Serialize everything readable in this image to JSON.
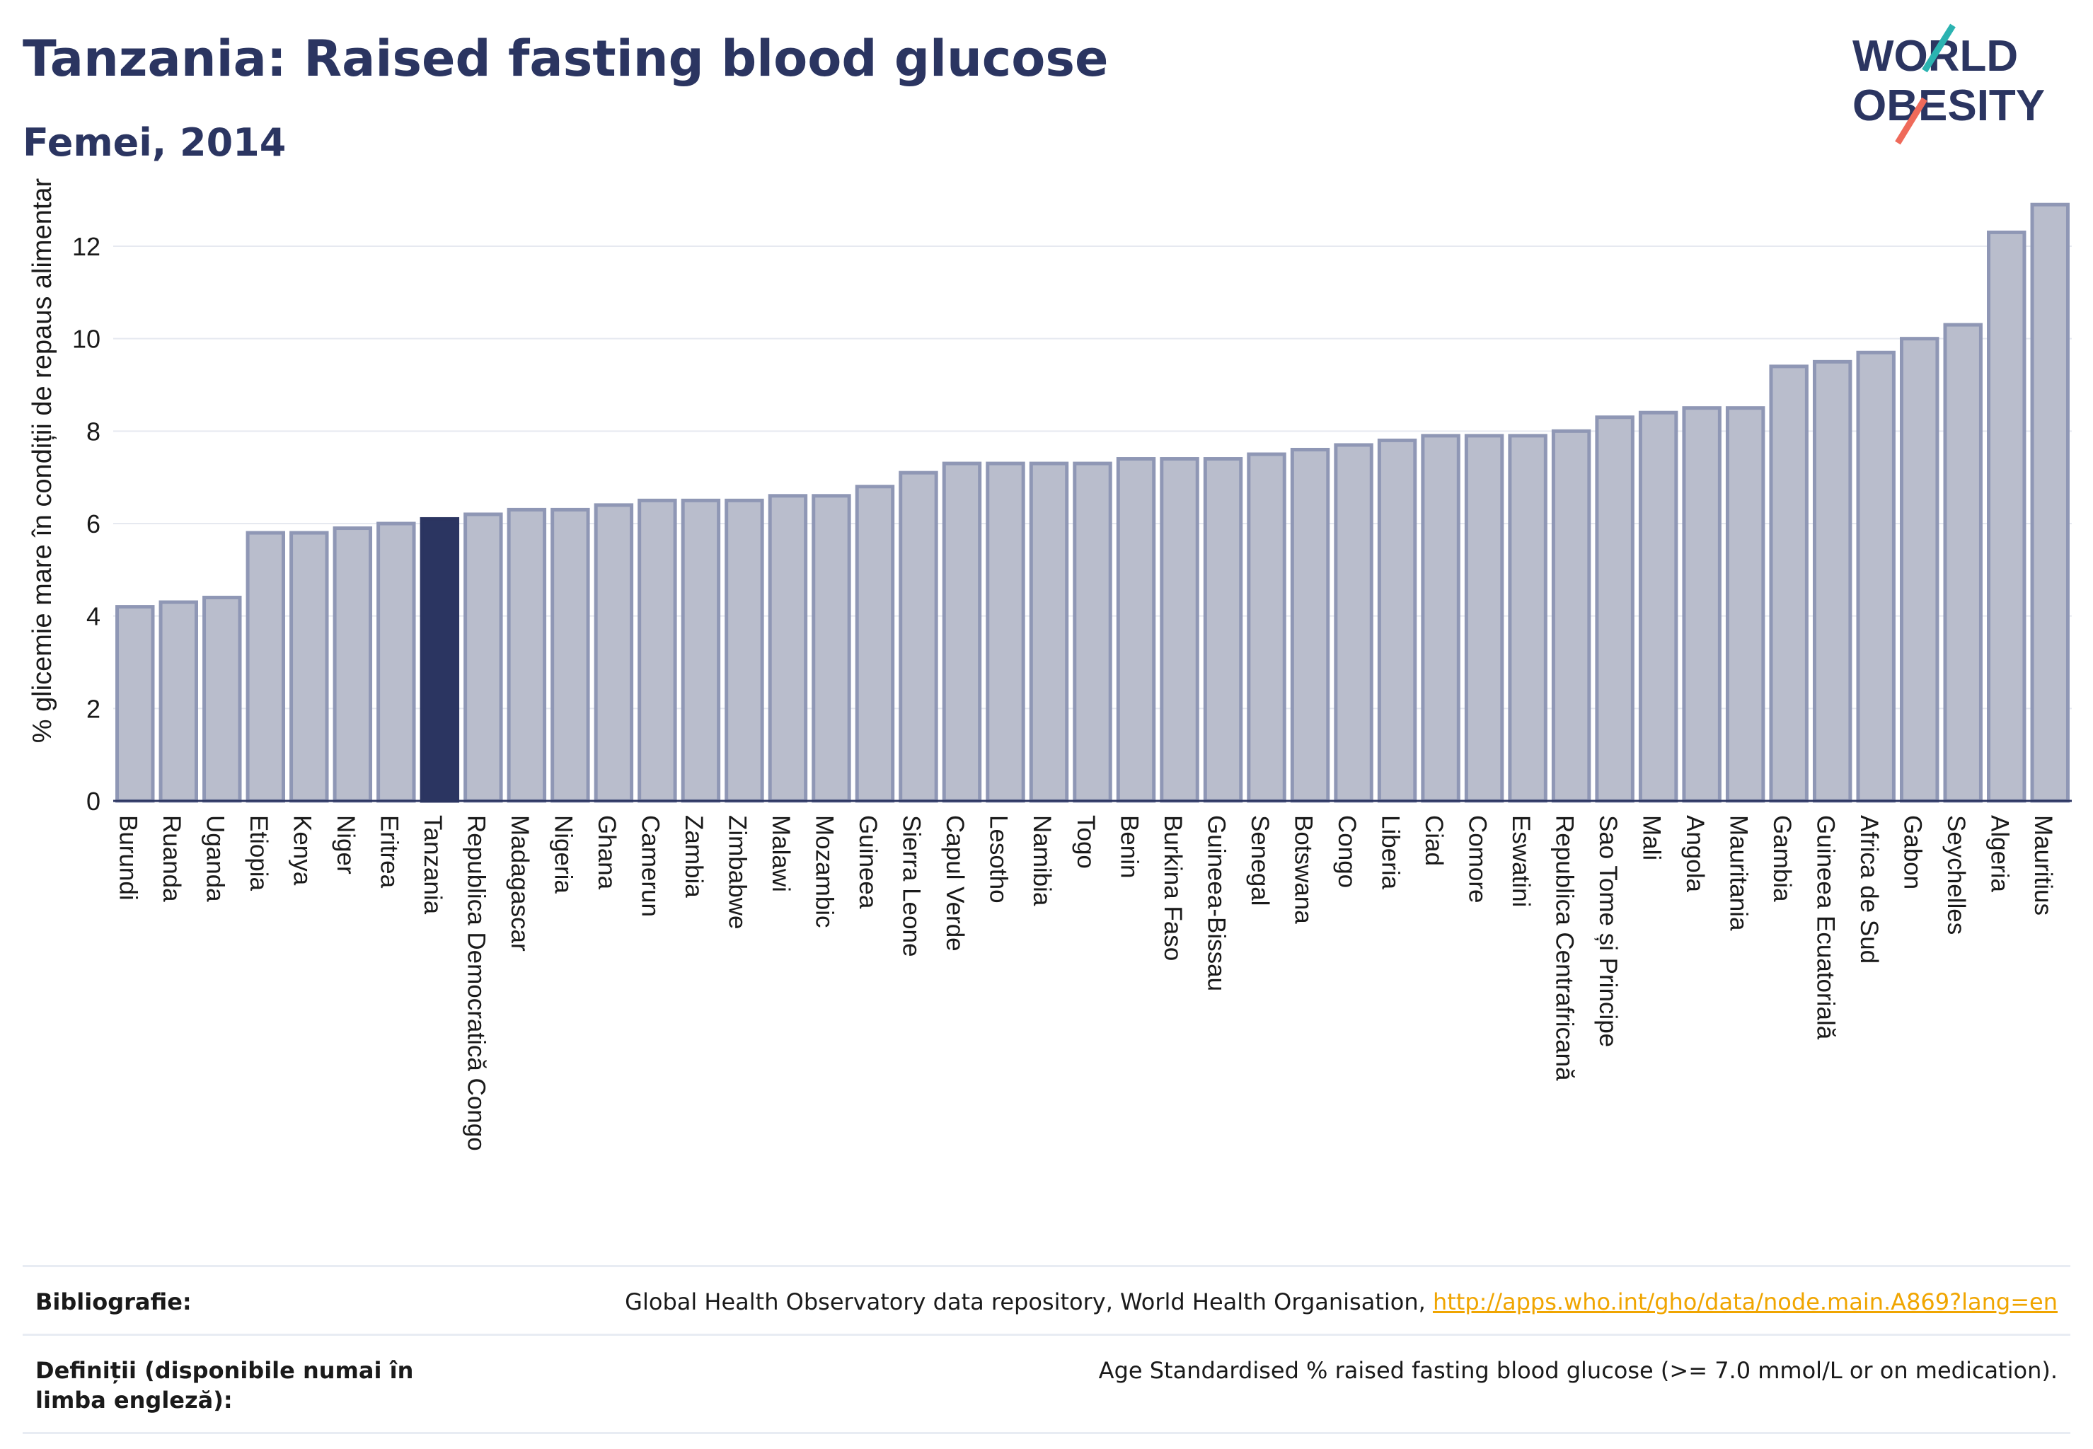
{
  "header": {
    "title": "Tanzania: Raised fasting blood glucose",
    "subtitle": "Femei, 2014"
  },
  "logo": {
    "line1": "WORLD",
    "line2": "OBESITY"
  },
  "chart_data": {
    "type": "bar",
    "ylabel": "% glicemie mare în condiții de repaus alimentar",
    "xlabel": "",
    "ylim": [
      0,
      13.5
    ],
    "yticks": [
      0,
      2,
      4,
      6,
      8,
      10,
      12
    ],
    "grid": true,
    "highlight": "Tanzania",
    "colors": {
      "bar": "#b9bdcc",
      "bar_edge": "#8f97b5",
      "highlight": "#2b3561"
    },
    "categories": [
      "Burundi",
      "Ruanda",
      "Uganda",
      "Etiopia",
      "Kenya",
      "Niger",
      "Eritrea",
      "Tanzania",
      "Republica Democratică Congo",
      "Madagascar",
      "Nigeria",
      "Ghana",
      "Camerun",
      "Zambia",
      "Zimbabwe",
      "Malawi",
      "Mozambic",
      "Guineea",
      "Sierra Leone",
      "Capul Verde",
      "Lesotho",
      "Namibia",
      "Togo",
      "Benin",
      "Burkina Faso",
      "Guineea-Bissau",
      "Senegal",
      "Botswana",
      "Congo",
      "Liberia",
      "Ciad",
      "Comore",
      "Eswatini",
      "Republica Centrafricană",
      "Sao Tome și Principe",
      "Mali",
      "Angola",
      "Mauritania",
      "Gambia",
      "Guineea Ecuatorială",
      "Africa de Sud",
      "Gabon",
      "Seychelles",
      "Algeria",
      "Mauritius"
    ],
    "values": [
      4.2,
      4.3,
      4.4,
      5.8,
      5.8,
      5.9,
      6.0,
      6.1,
      6.2,
      6.3,
      6.3,
      6.4,
      6.5,
      6.5,
      6.5,
      6.6,
      6.6,
      6.8,
      7.1,
      7.3,
      7.3,
      7.3,
      7.3,
      7.4,
      7.4,
      7.4,
      7.5,
      7.6,
      7.7,
      7.8,
      7.9,
      7.9,
      7.9,
      8.0,
      8.3,
      8.4,
      8.5,
      8.5,
      9.4,
      9.5,
      9.7,
      10.0,
      10.3,
      12.3,
      12.9
    ]
  },
  "footer": {
    "bibliography_label": "Bibliografie:",
    "bibliography_text": "Global Health Observatory data repository, World Health Organisation, ",
    "bibliography_link": "http://apps.who.int/gho/data/node.main.A869?lang=en",
    "definitions_label": "Definiții (disponibile numai în limba engleză):",
    "definitions_text": "Age Standardised % raised fasting blood glucose (>= 7.0 mmol/L or on medication)."
  }
}
